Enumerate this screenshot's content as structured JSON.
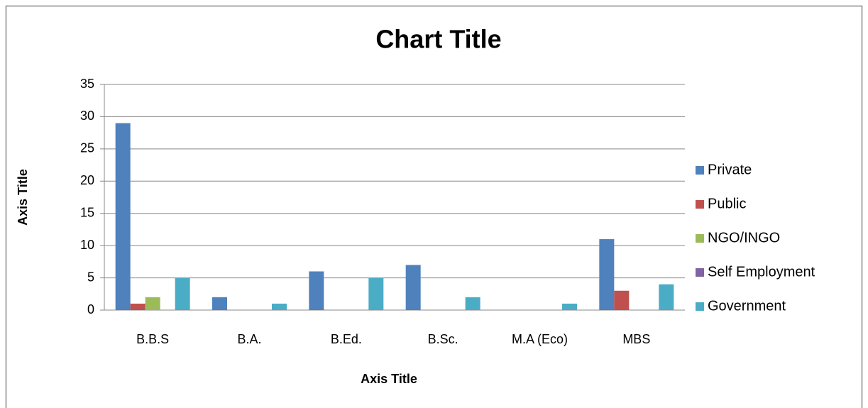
{
  "chart_data": {
    "type": "bar",
    "title": "Chart Title",
    "x_label": "Axis Title",
    "y_label": "Axis Title",
    "categories": [
      "B.B.S",
      "B.A.",
      "B.Ed.",
      "B.Sc.",
      "M.A (Eco)",
      "MBS"
    ],
    "series": [
      {
        "name": "Private",
        "color": "#4f81bd",
        "values": [
          29,
          2,
          6,
          7,
          0,
          11
        ]
      },
      {
        "name": "Public",
        "color": "#c0504d",
        "values": [
          1,
          0,
          0,
          0,
          0,
          3
        ]
      },
      {
        "name": "NGO/INGO",
        "color": "#9bbb59",
        "values": [
          2,
          0,
          0,
          0,
          0,
          0
        ]
      },
      {
        "name": "Self Employment",
        "color": "#8064a2",
        "values": [
          0,
          0,
          0,
          0,
          0,
          0
        ]
      },
      {
        "name": "Government",
        "color": "#4bacc6",
        "values": [
          5,
          1,
          5,
          2,
          1,
          4
        ]
      }
    ],
    "ylim": [
      0,
      35
    ],
    "yticks": [
      0,
      5,
      10,
      15,
      20,
      25,
      30,
      35
    ],
    "grid": true,
    "legend": "right"
  }
}
